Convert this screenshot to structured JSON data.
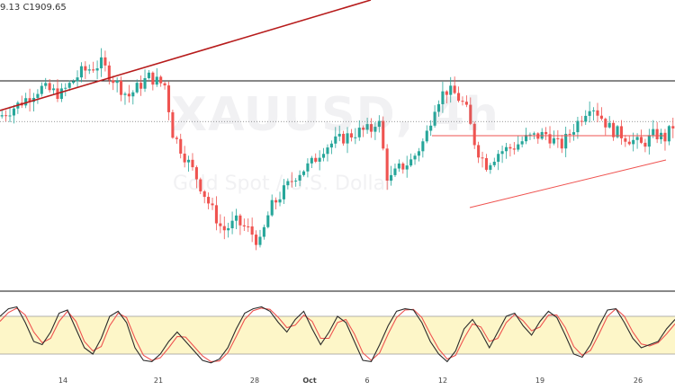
{
  "header": {
    "ohlc_readout": "9.13  C1909.65"
  },
  "watermark": {
    "symbol": "XAUUSD, 4h",
    "subtitle": "Gold Spot / U.S. Dollar"
  },
  "chart_data": [
    {
      "type": "candlestick",
      "symbol": "XAUUSD",
      "interval": "4h",
      "last_close": 1909.65,
      "x_tick_labels": [
        "14",
        "21",
        "28",
        "Oct",
        "6",
        "12",
        "19",
        "26"
      ],
      "price_path": [
        {
          "t": 0.0,
          "p": 1912
        },
        {
          "t": 0.03,
          "p": 1918
        },
        {
          "t": 0.06,
          "p": 1925
        },
        {
          "t": 0.09,
          "p": 1922
        },
        {
          "t": 0.12,
          "p": 1932
        },
        {
          "t": 0.15,
          "p": 1936
        },
        {
          "t": 0.17,
          "p": 1928
        },
        {
          "t": 0.19,
          "p": 1921
        },
        {
          "t": 0.22,
          "p": 1930
        },
        {
          "t": 0.245,
          "p": 1926
        },
        {
          "t": 0.255,
          "p": 1905
        },
        {
          "t": 0.27,
          "p": 1896
        },
        {
          "t": 0.29,
          "p": 1885
        },
        {
          "t": 0.31,
          "p": 1872
        },
        {
          "t": 0.33,
          "p": 1860
        },
        {
          "t": 0.35,
          "p": 1864
        },
        {
          "t": 0.37,
          "p": 1860
        },
        {
          "t": 0.385,
          "p": 1854
        },
        {
          "t": 0.4,
          "p": 1870
        },
        {
          "t": 0.42,
          "p": 1878
        },
        {
          "t": 0.44,
          "p": 1886
        },
        {
          "t": 0.46,
          "p": 1890
        },
        {
          "t": 0.48,
          "p": 1898
        },
        {
          "t": 0.5,
          "p": 1901
        },
        {
          "t": 0.53,
          "p": 1905
        },
        {
          "t": 0.55,
          "p": 1906
        },
        {
          "t": 0.56,
          "p": 1912
        },
        {
          "t": 0.575,
          "p": 1882
        },
        {
          "t": 0.59,
          "p": 1888
        },
        {
          "t": 0.61,
          "p": 1892
        },
        {
          "t": 0.63,
          "p": 1902
        },
        {
          "t": 0.645,
          "p": 1918
        },
        {
          "t": 0.66,
          "p": 1924
        },
        {
          "t": 0.675,
          "p": 1922
        },
        {
          "t": 0.69,
          "p": 1916
        },
        {
          "t": 0.705,
          "p": 1898
        },
        {
          "t": 0.72,
          "p": 1890
        },
        {
          "t": 0.74,
          "p": 1896
        },
        {
          "t": 0.76,
          "p": 1898
        },
        {
          "t": 0.78,
          "p": 1902
        },
        {
          "t": 0.81,
          "p": 1904
        },
        {
          "t": 0.83,
          "p": 1898
        },
        {
          "t": 0.855,
          "p": 1909
        },
        {
          "t": 0.875,
          "p": 1918
        },
        {
          "t": 0.89,
          "p": 1912
        },
        {
          "t": 0.905,
          "p": 1906
        },
        {
          "t": 0.925,
          "p": 1903
        },
        {
          "t": 0.95,
          "p": 1899
        },
        {
          "t": 0.97,
          "p": 1904
        },
        {
          "t": 0.985,
          "p": 1902
        },
        {
          "t": 1.0,
          "p": 1909
        }
      ],
      "stochastic": {
        "k": [
          80,
          92,
          95,
          70,
          40,
          35,
          55,
          85,
          90,
          60,
          30,
          20,
          45,
          80,
          88,
          70,
          30,
          10,
          8,
          20,
          40,
          55,
          40,
          25,
          10,
          6,
          12,
          30,
          60,
          85,
          92,
          95,
          88,
          70,
          55,
          75,
          88,
          60,
          35,
          55,
          80,
          70,
          40,
          10,
          8,
          35,
          65,
          88,
          92,
          90,
          70,
          40,
          20,
          8,
          25,
          60,
          75,
          55,
          30,
          55,
          80,
          85,
          65,
          50,
          72,
          88,
          78,
          50,
          20,
          15,
          35,
          65,
          90,
          92,
          70,
          45,
          30,
          35,
          40,
          60,
          75
        ],
        "d": [
          72,
          86,
          93,
          82,
          55,
          38,
          45,
          72,
          88,
          72,
          40,
          25,
          32,
          65,
          85,
          78,
          45,
          18,
          10,
          14,
          30,
          48,
          47,
          32,
          17,
          8,
          9,
          22,
          48,
          75,
          89,
          93,
          91,
          78,
          62,
          66,
          82,
          72,
          45,
          45,
          70,
          75,
          52,
          22,
          10,
          22,
          52,
          78,
          90,
          91,
          78,
          52,
          28,
          12,
          18,
          45,
          68,
          63,
          40,
          45,
          70,
          83,
          73,
          57,
          63,
          82,
          82,
          62,
          32,
          18,
          26,
          52,
          80,
          92,
          80,
          55,
          36,
          33,
          38,
          52,
          68
        ],
        "upper_band": 80,
        "lower_band": 20
      }
    }
  ],
  "colors": {
    "up": "#26a69a",
    "down": "#ef5350",
    "trendline_dark": "#b71c1c",
    "trendline_light": "#ef5350",
    "stoch_k": "#2b2b2b",
    "stoch_d": "#ef5350",
    "stoch_band_fill": "#fdf6c8",
    "stoch_band_stroke": "#999999",
    "box_border": "#111111",
    "last_price_line": "#777777"
  }
}
